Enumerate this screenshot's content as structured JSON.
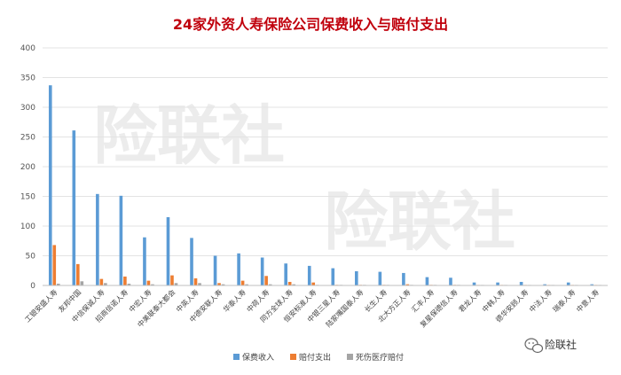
{
  "chart_data": {
    "type": "bar",
    "title": "24家外资人寿保险公司保费收入与赔付支出",
    "xlabel": "",
    "ylabel": "",
    "ylim": [
      0,
      400
    ],
    "yticks": [
      0,
      50,
      100,
      150,
      200,
      250,
      300,
      350,
      400
    ],
    "grid": true,
    "legend_position": "bottom",
    "categories": [
      "工银安盛人寿",
      "友邦中国",
      "中信保诚人寿",
      "招商信诺人寿",
      "中宏人寿",
      "中美联泰大都会",
      "中英人寿",
      "中德安联人寿",
      "华泰人寿",
      "中荷人寿",
      "同方全球人寿",
      "恒安标准人寿",
      "中银三星人寿",
      "陆家嘴国泰人寿",
      "长生人寿",
      "北大方正人寿",
      "汇丰人寿",
      "复星保德信人寿",
      "君龙人寿",
      "中韩人寿",
      "德华安顾人寿",
      "中法人寿",
      "瑞泰人寿",
      "中意人寿"
    ],
    "series": [
      {
        "name": "保费收入",
        "color": "#5b9bd5",
        "values": [
          337,
          261,
          154,
          151,
          81,
          115,
          80,
          50,
          54,
          47,
          37,
          33,
          29,
          24,
          23,
          21,
          14,
          13,
          5,
          5,
          6,
          2,
          5,
          2
        ]
      },
      {
        "name": "赔付支出",
        "color": "#ed7d31",
        "values": [
          68,
          36,
          11,
          15,
          8,
          17,
          12,
          4,
          8,
          16,
          6,
          5,
          1,
          1,
          1,
          2,
          1,
          1,
          0.5,
          0.5,
          0.5,
          0.2,
          0.5,
          0.2
        ]
      },
      {
        "name": "死伤医疗赔付",
        "color": "#a5a5a5",
        "values": [
          3,
          7,
          4,
          3,
          2,
          4,
          4,
          2,
          2,
          2,
          2,
          1,
          1,
          1,
          1,
          1,
          1,
          1,
          0.5,
          0.5,
          0.5,
          0.2,
          0.5,
          0.2
        ]
      }
    ]
  },
  "watermark_text": "险联社",
  "brand_text": "险联社",
  "brand_icon": "wechat-icon"
}
